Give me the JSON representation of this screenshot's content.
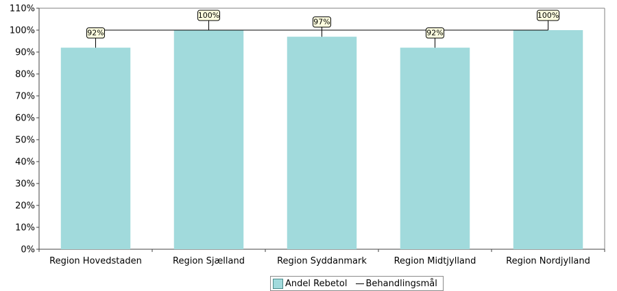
{
  "chart_data": {
    "type": "bar",
    "categories": [
      "Region Hovedstaden",
      "Region Sjælland",
      "Region Syddanmark",
      "Region Midtjylland",
      "Region Nordjylland"
    ],
    "series": [
      {
        "name": "Andel Rebetol",
        "type": "bar",
        "values": [
          92,
          100,
          97,
          92,
          100
        ],
        "color": "#a1dadc"
      },
      {
        "name": "Behandlingsmål",
        "type": "line",
        "values": [
          100,
          100,
          100,
          100,
          100
        ],
        "color": "#000000"
      }
    ],
    "data_labels": [
      "92%",
      "100%",
      "97%",
      "92%",
      "100%"
    ],
    "yticks": [
      "0%",
      "10%",
      "20%",
      "30%",
      "40%",
      "50%",
      "60%",
      "70%",
      "80%",
      "90%",
      "100%",
      "110%"
    ],
    "ylim": [
      0,
      110
    ],
    "legend_position": "bottom-center",
    "grid": false,
    "data_label_fill": "#ffffe0"
  }
}
